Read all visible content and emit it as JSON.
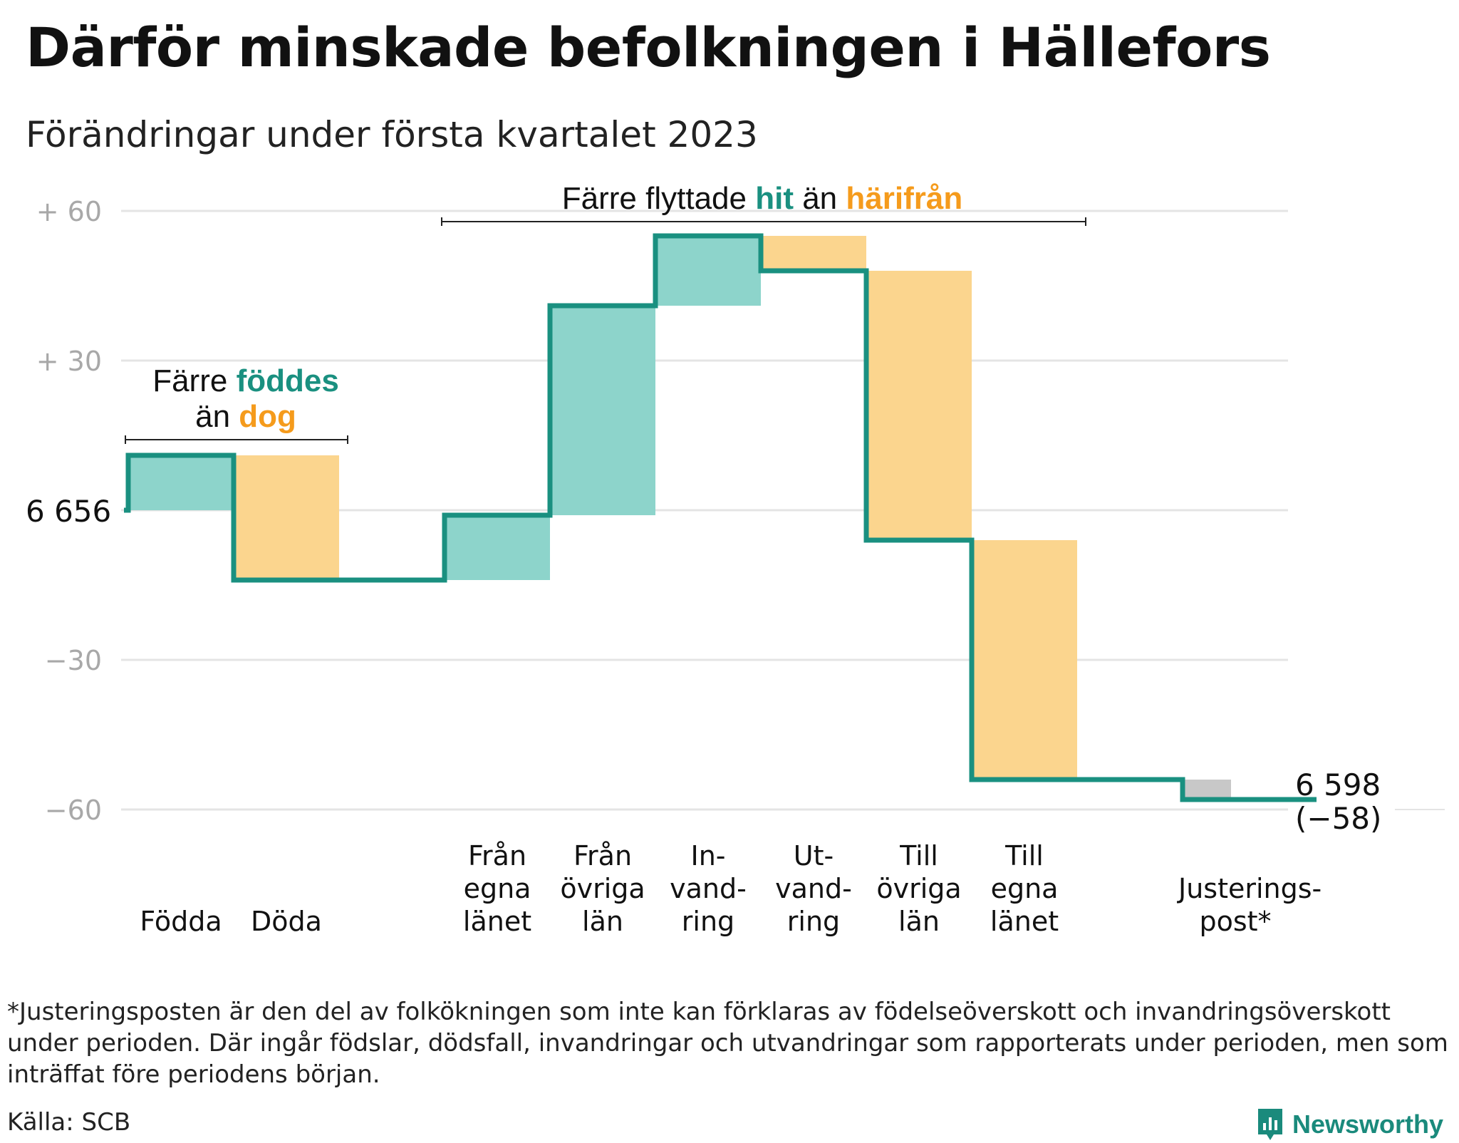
{
  "title": "Därför minskade befolkningen i Hällefors",
  "subtitle": "Förändringar under första kvartalet 2023",
  "footnote": "*Justeringsposten är den del av folkökningen som inte kan förklaras av födelseöverskott och invandringsöverskott under perioden. Där ingår födslar, dödsfall, invandringar och utvandringar som rapporterats under perioden, men som inträffat före periodens början.",
  "source": "Källa: SCB",
  "logo": {
    "name": "Newsworthy"
  },
  "colors": {
    "teal": "#1a9080",
    "teal_fill": "#8dd4cb",
    "orange_fill": "#fbd58e",
    "orange_text": "#f59b1c",
    "gray_fill": "#c8c8c8",
    "grid": "#e4e4e4"
  },
  "annotations": {
    "births": {
      "pre": "Färre ",
      "teal": "föddes",
      "line2_pre": "än ",
      "orange": "dog"
    },
    "migration": {
      "pre": "Färre flyttade ",
      "teal": "hit",
      "mid": " än ",
      "orange": "härifrån"
    }
  },
  "chart_data": {
    "type": "waterfall",
    "start_value": 6656,
    "start_label": "6 656",
    "end_label": "6 598",
    "end_change_label": "(−58)",
    "ylim": [
      -62,
      62
    ],
    "ytick_values": [
      60,
      30,
      0,
      -30,
      -60
    ],
    "ytick_labels": [
      "+ 60",
      "+ 30",
      "",
      "−30",
      "−60"
    ],
    "steps": [
      {
        "label": "Födda",
        "change": 11,
        "kind": "inflow"
      },
      {
        "label": "Döda",
        "change": -25,
        "kind": "outflow"
      },
      {
        "label": "",
        "change": 0,
        "kind": "spacer"
      },
      {
        "label": "Från\negna\nlänet",
        "change": 13,
        "kind": "inflow"
      },
      {
        "label": "Från\növriga\nlän",
        "change": 42,
        "kind": "inflow"
      },
      {
        "label": "In-\nvand-\nring",
        "change": 14,
        "kind": "inflow"
      },
      {
        "label": "Ut-\nvand-\nring",
        "change": -7,
        "kind": "outflow"
      },
      {
        "label": "Till\növriga\nlän",
        "change": -54,
        "kind": "outflow"
      },
      {
        "label": "Till\negna\nlänet",
        "change": -48,
        "kind": "outflow"
      },
      {
        "label": "",
        "change": 0,
        "kind": "spacer"
      },
      {
        "label": "Justerings-\npost*",
        "change": -4,
        "kind": "adjustment"
      }
    ]
  }
}
